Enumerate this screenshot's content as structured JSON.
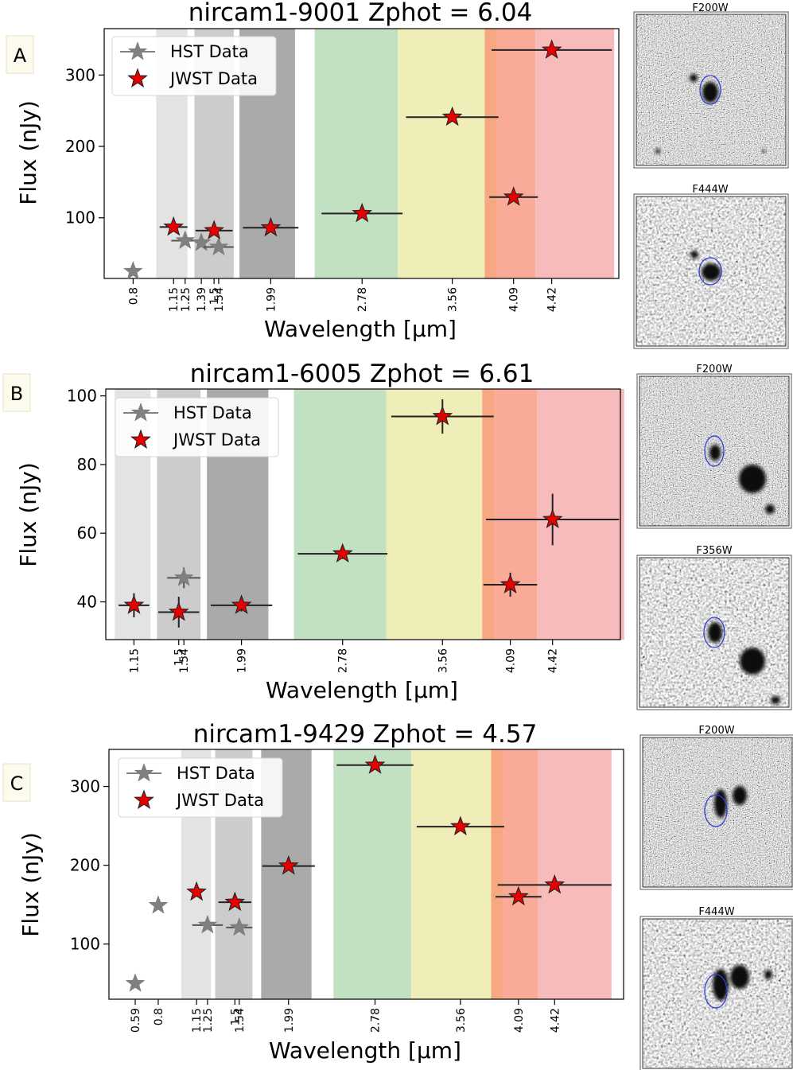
{
  "chart_data": [
    {
      "type": "scatter",
      "panel_label": "A",
      "title": "nircam1-9001 Zphot = 6.04",
      "xlabel": "Wavelength [μm]",
      "ylabel": "Flux (nJy)",
      "x_ticks": [
        "0.8",
        "1.15",
        "1.25",
        "1.39",
        "1.5",
        "1.54",
        "1.99",
        "2.78",
        "3.56",
        "4.09",
        "4.42"
      ],
      "x_tick_values": [
        0.8,
        1.15,
        1.25,
        1.39,
        1.5,
        1.54,
        1.99,
        2.78,
        3.56,
        4.09,
        4.42
      ],
      "xlim": [
        0.55,
        5.0
      ],
      "y_ticks": [
        100,
        200,
        300
      ],
      "ylim": [
        15,
        365
      ],
      "bands": [
        {
          "from": 1.0,
          "to": 1.27,
          "color": "#e3e3e3"
        },
        {
          "from": 1.33,
          "to": 1.67,
          "color": "#cccccc"
        },
        {
          "from": 1.72,
          "to": 2.2,
          "color": "#aaaaaa"
        },
        {
          "from": 2.37,
          "to": 3.09,
          "color": "#c2e0c2"
        },
        {
          "from": 3.09,
          "to": 3.84,
          "color": "#efeeb8"
        },
        {
          "from": 3.84,
          "to": 3.95,
          "color": "#f7a882"
        },
        {
          "from": 3.95,
          "to": 4.28,
          "color": "#f9ab97"
        },
        {
          "from": 4.28,
          "to": 4.96,
          "color": "#f8bbbb"
        }
      ],
      "legend": [
        {
          "label": "HST Data",
          "color": "#808080"
        },
        {
          "label": "JWST Data",
          "color": "#e60000"
        }
      ],
      "series": [
        {
          "name": "HST Data",
          "color": "#808080",
          "points": [
            {
              "x": 0.8,
              "y": 25,
              "xerr": 0,
              "yerr": 0
            },
            {
              "x": 1.25,
              "y": 68,
              "xerr": 0.12,
              "yerr": 0
            },
            {
              "x": 1.39,
              "y": 65,
              "xerr": 0,
              "yerr": 0
            },
            {
              "x": 1.54,
              "y": 59,
              "xerr": 0.13,
              "yerr": 0
            }
          ]
        },
        {
          "name": "JWST Data",
          "color": "#e60000",
          "points": [
            {
              "x": 1.15,
              "y": 87,
              "xerr": 0.12,
              "yerr": 0
            },
            {
              "x": 1.5,
              "y": 82,
              "xerr": 0.16,
              "yerr": 0
            },
            {
              "x": 1.99,
              "y": 86,
              "xerr": 0.24,
              "yerr": 0
            },
            {
              "x": 2.78,
              "y": 106,
              "xerr": 0.35,
              "yerr": 0
            },
            {
              "x": 3.56,
              "y": 241,
              "xerr": 0.4,
              "yerr": 0
            },
            {
              "x": 4.09,
              "y": 129,
              "xerr": 0.21,
              "yerr": 0
            },
            {
              "x": 4.42,
              "y": 335,
              "xerr": 0.52,
              "yerr": 0
            }
          ]
        }
      ],
      "cutouts": [
        {
          "label": "F200W",
          "ellipse_color": "#2f3fd8"
        },
        {
          "label": "F444W",
          "ellipse_color": "#2f3fd8"
        }
      ]
    },
    {
      "type": "scatter",
      "panel_label": "B",
      "title": "nircam1-6005 Zphot = 6.61",
      "xlabel": "Wavelength [μm]",
      "ylabel": "Flux (nJy)",
      "x_ticks": [
        "1.15",
        "1.5",
        "1.54",
        "1.99",
        "2.78",
        "3.56",
        "4.09",
        "4.42"
      ],
      "x_tick_values": [
        1.15,
        1.5,
        1.54,
        1.99,
        2.78,
        3.56,
        4.09,
        4.42
      ],
      "xlim": [
        0.93,
        4.95
      ],
      "y_ticks": [
        40,
        60,
        80,
        100
      ],
      "ylim": [
        29,
        102
      ],
      "bands": [
        {
          "from": 1.0,
          "to": 1.28,
          "color": "#e3e3e3"
        },
        {
          "from": 1.33,
          "to": 1.67,
          "color": "#cccccc"
        },
        {
          "from": 1.72,
          "to": 2.2,
          "color": "#aaaaaa"
        },
        {
          "from": 2.4,
          "to": 3.12,
          "color": "#c2e0c2"
        },
        {
          "from": 3.12,
          "to": 3.87,
          "color": "#efeeb8"
        },
        {
          "from": 3.87,
          "to": 3.97,
          "color": "#f7a882"
        },
        {
          "from": 3.97,
          "to": 4.3,
          "color": "#f9ab97"
        },
        {
          "from": 4.3,
          "to": 4.98,
          "color": "#f8bbbb"
        }
      ],
      "legend": [
        {
          "label": "HST Data",
          "color": "#808080"
        },
        {
          "label": "JWST Data",
          "color": "#e60000"
        }
      ],
      "series": [
        {
          "name": "HST Data",
          "color": "#808080",
          "points": [
            {
              "x": 1.54,
              "y": 47,
              "xerr": 0.13,
              "yerr": 3
            }
          ]
        },
        {
          "name": "JWST Data",
          "color": "#e60000",
          "points": [
            {
              "x": 1.15,
              "y": 39,
              "xerr": 0.12,
              "yerr": 3.5
            },
            {
              "x": 1.5,
              "y": 37,
              "xerr": 0.16,
              "yerr": 4.5
            },
            {
              "x": 1.99,
              "y": 39,
              "xerr": 0.24,
              "yerr": 1.8
            },
            {
              "x": 2.78,
              "y": 54,
              "xerr": 0.35,
              "yerr": 1.5
            },
            {
              "x": 3.56,
              "y": 94,
              "xerr": 0.4,
              "yerr": 5
            },
            {
              "x": 4.09,
              "y": 45,
              "xerr": 0.21,
              "yerr": 3.5
            },
            {
              "x": 4.42,
              "y": 64,
              "xerr": 0.52,
              "yerr": 7.5
            }
          ]
        }
      ],
      "cutouts": [
        {
          "label": "F200W",
          "ellipse_color": "#2f3fd8"
        },
        {
          "label": "F356W",
          "ellipse_color": "#2f3fd8"
        }
      ]
    },
    {
      "type": "scatter",
      "panel_label": "C",
      "title": "nircam1-9429 Zphot = 4.57",
      "xlabel": "Wavelength [μm]",
      "ylabel": "Flux (nJy)",
      "x_ticks": [
        "0.59",
        "0.8",
        "1.15",
        "1.25",
        "1.5",
        "1.54",
        "1.99",
        "2.78",
        "3.56",
        "4.09",
        "4.42"
      ],
      "x_tick_values": [
        0.59,
        0.8,
        1.15,
        1.25,
        1.5,
        1.54,
        1.99,
        2.78,
        3.56,
        4.09,
        4.42
      ],
      "xlim": [
        0.35,
        5.05
      ],
      "y_ticks": [
        100,
        200,
        300
      ],
      "ylim": [
        30,
        347
      ],
      "bands": [
        {
          "from": 1.01,
          "to": 1.28,
          "color": "#e3e3e3"
        },
        {
          "from": 1.32,
          "to": 1.66,
          "color": "#cccccc"
        },
        {
          "from": 1.74,
          "to": 2.2,
          "color": "#aaaaaa"
        },
        {
          "from": 2.4,
          "to": 3.11,
          "color": "#c2e0c2"
        },
        {
          "from": 3.11,
          "to": 3.84,
          "color": "#efeeb8"
        },
        {
          "from": 3.84,
          "to": 3.95,
          "color": "#f7a882"
        },
        {
          "from": 3.95,
          "to": 4.27,
          "color": "#f9ab97"
        },
        {
          "from": 4.27,
          "to": 4.94,
          "color": "#f8bbbb"
        }
      ],
      "legend": [
        {
          "label": "HST Data",
          "color": "#808080"
        },
        {
          "label": "JWST Data",
          "color": "#e60000"
        }
      ],
      "series": [
        {
          "name": "HST Data",
          "color": "#808080",
          "points": [
            {
              "x": 0.59,
              "y": 50,
              "xerr": 0,
              "yerr": 0
            },
            {
              "x": 0.8,
              "y": 149,
              "xerr": 0,
              "yerr": 0
            },
            {
              "x": 1.25,
              "y": 124,
              "xerr": 0.14,
              "yerr": 0
            },
            {
              "x": 1.54,
              "y": 121,
              "xerr": 0.12,
              "yerr": 0
            }
          ]
        },
        {
          "name": "JWST Data",
          "color": "#e60000",
          "points": [
            {
              "x": 1.15,
              "y": 166,
              "xerr": 0,
              "yerr": 0
            },
            {
              "x": 1.5,
              "y": 153,
              "xerr": 0.15,
              "yerr": 0
            },
            {
              "x": 1.99,
              "y": 199,
              "xerr": 0.24,
              "yerr": 0
            },
            {
              "x": 2.78,
              "y": 327,
              "xerr": 0.35,
              "yerr": 0
            },
            {
              "x": 3.56,
              "y": 249,
              "xerr": 0.4,
              "yerr": 0
            },
            {
              "x": 4.09,
              "y": 160,
              "xerr": 0.21,
              "yerr": 0
            },
            {
              "x": 4.42,
              "y": 175,
              "xerr": 0.52,
              "yerr": 0
            }
          ]
        }
      ],
      "cutouts": [
        {
          "label": "F200W",
          "ellipse_color": "#2f3fd8"
        },
        {
          "label": "F444W",
          "ellipse_color": "#2f3fd8"
        }
      ]
    }
  ]
}
